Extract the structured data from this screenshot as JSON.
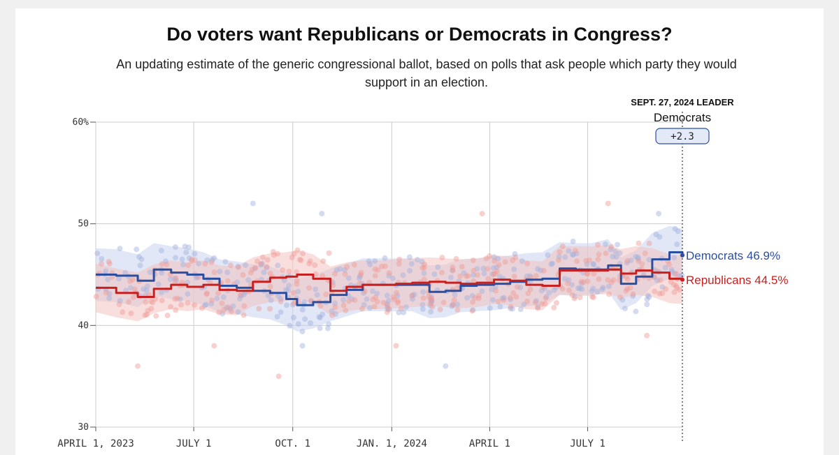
{
  "title": "Do voters want Republicans or Democrats in Congress?",
  "subtitle": "An updating estimate of the generic congressional ballot, based on polls that ask people which party they would support in an election.",
  "leader": {
    "date_label": "SEPT. 27, 2024 LEADER",
    "party": "Democrats",
    "margin": "+2.3"
  },
  "colors": {
    "democrats": "#2b4fa0",
    "republicans": "#c8201f",
    "dem_band": "#c9d3ee",
    "rep_band": "#f3c2bf",
    "dem_dot": "#9fb0dd",
    "rep_dot": "#ef9a94",
    "grid": "#cccccc",
    "badge_bg": "#e3e9f7"
  },
  "chart_data": {
    "type": "line",
    "title": "Do voters want Republicans or Democrats in Congress?",
    "xlabel": "",
    "ylabel": "",
    "x_domain": [
      "2023-04-01",
      "2024-09-27"
    ],
    "ylim": [
      30,
      60
    ],
    "y_ticks": [
      {
        "value": 60,
        "label": "60%"
      },
      {
        "value": 50,
        "label": "50"
      },
      {
        "value": 40,
        "label": "40"
      },
      {
        "value": 30,
        "label": "30"
      }
    ],
    "x_ticks": [
      {
        "date": "2023-04-01",
        "label": "APRIL 1, 2023"
      },
      {
        "date": "2023-07-01",
        "label": "JULY 1"
      },
      {
        "date": "2023-10-01",
        "label": "OCT. 1"
      },
      {
        "date": "2024-01-01",
        "label": "JAN. 1, 2024"
      },
      {
        "date": "2024-04-01",
        "label": "APRIL 1"
      },
      {
        "date": "2024-07-01",
        "label": "JULY 1"
      }
    ],
    "grid": true,
    "series": [
      {
        "name": "Democrats",
        "end_label": "Democrats 46.9%",
        "final_value": 46.9,
        "x": [
          "2023-04-01",
          "2023-04-20",
          "2023-05-10",
          "2023-05-25",
          "2023-06-10",
          "2023-06-25",
          "2023-07-10",
          "2023-07-25",
          "2023-08-10",
          "2023-08-25",
          "2023-09-10",
          "2023-09-25",
          "2023-10-05",
          "2023-10-20",
          "2023-11-05",
          "2023-11-20",
          "2023-12-05",
          "2023-12-20",
          "2024-01-05",
          "2024-01-20",
          "2024-02-05",
          "2024-02-20",
          "2024-03-05",
          "2024-03-20",
          "2024-04-05",
          "2024-04-20",
          "2024-05-05",
          "2024-05-20",
          "2024-06-05",
          "2024-06-20",
          "2024-07-05",
          "2024-07-20",
          "2024-08-01",
          "2024-08-15",
          "2024-08-30",
          "2024-09-15",
          "2024-09-27"
        ],
        "values": [
          45.0,
          44.9,
          44.4,
          45.5,
          45.2,
          45.0,
          44.6,
          43.9,
          43.7,
          43.4,
          43.2,
          42.6,
          42.0,
          42.3,
          43.0,
          43.5,
          44.0,
          44.0,
          44.0,
          44.0,
          43.3,
          43.4,
          43.9,
          44.0,
          44.1,
          44.3,
          44.5,
          44.6,
          45.6,
          45.5,
          45.5,
          45.9,
          44.1,
          44.8,
          46.5,
          47.2,
          46.9
        ]
      },
      {
        "name": "Republicans",
        "end_label": "Republicans 44.5%",
        "final_value": 44.5,
        "x": [
          "2023-04-01",
          "2023-04-20",
          "2023-05-10",
          "2023-05-25",
          "2023-06-10",
          "2023-06-25",
          "2023-07-10",
          "2023-07-25",
          "2023-08-10",
          "2023-08-25",
          "2023-09-10",
          "2023-09-25",
          "2023-10-05",
          "2023-10-20",
          "2023-11-05",
          "2023-11-20",
          "2023-12-05",
          "2023-12-20",
          "2024-01-05",
          "2024-01-20",
          "2024-02-05",
          "2024-02-20",
          "2024-03-05",
          "2024-03-20",
          "2024-04-05",
          "2024-04-20",
          "2024-05-05",
          "2024-05-20",
          "2024-06-05",
          "2024-06-20",
          "2024-07-05",
          "2024-07-20",
          "2024-08-01",
          "2024-08-15",
          "2024-08-30",
          "2024-09-15",
          "2024-09-27"
        ],
        "values": [
          43.7,
          43.2,
          42.8,
          43.6,
          44.0,
          43.8,
          44.0,
          43.5,
          43.4,
          44.3,
          44.7,
          44.8,
          45.0,
          44.6,
          43.4,
          43.8,
          44.0,
          44.0,
          44.1,
          44.2,
          44.3,
          44.2,
          44.1,
          44.2,
          44.5,
          44.4,
          44.0,
          43.9,
          45.4,
          45.4,
          45.4,
          45.5,
          45.1,
          45.4,
          45.2,
          44.6,
          44.5
        ]
      }
    ]
  }
}
